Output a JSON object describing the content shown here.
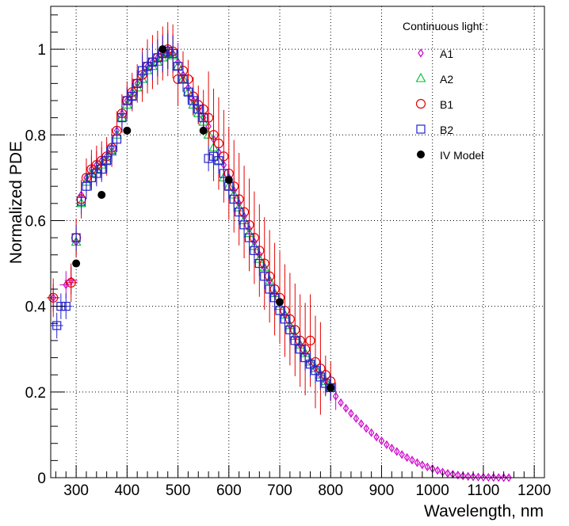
{
  "chart_data": {
    "type": "scatter",
    "title": "",
    "xlabel": "Wavelength, nm",
    "ylabel": "Normalized PDE",
    "xlim": [
      250,
      1220
    ],
    "ylim": [
      0,
      1.1
    ],
    "xticks": [
      "300",
      "400",
      "500",
      "600",
      "700",
      "800",
      "900",
      "1000",
      "1100",
      "1200"
    ],
    "yticks": [
      "0",
      "0.2",
      "0.4",
      "0.6",
      "0.8",
      "1"
    ],
    "grid": true,
    "legend": {
      "position": "top-right",
      "title": "Continuous light :",
      "entries": [
        "A1",
        "A2",
        "B1",
        "B2",
        "IV Model"
      ]
    },
    "colors": {
      "A1": "#cc00cc",
      "A2": "#00bb33",
      "B1": "#e60000",
      "B2": "#2222cc",
      "IV Model": "#000000",
      "grid": "#000000"
    },
    "series": [
      {
        "name": "A1",
        "marker": "diamond",
        "x": [
          255,
          280,
          290,
          300,
          310,
          320,
          330,
          340,
          350,
          360,
          370,
          380,
          390,
          400,
          410,
          420,
          430,
          440,
          450,
          460,
          470,
          480,
          490,
          500,
          510,
          520,
          530,
          540,
          550,
          560,
          570,
          580,
          590,
          600,
          610,
          620,
          630,
          640,
          650,
          660,
          670,
          680,
          690,
          700,
          710,
          720,
          730,
          740,
          750,
          760,
          770,
          780,
          790,
          800,
          810,
          820,
          830,
          840,
          850,
          860,
          870,
          880,
          890,
          900,
          910,
          920,
          930,
          940,
          950,
          960,
          970,
          980,
          990,
          1000,
          1010,
          1020,
          1030,
          1040,
          1050,
          1060,
          1070,
          1080,
          1090,
          1100,
          1110,
          1120,
          1130,
          1140,
          1150
        ],
        "y": [
          0.42,
          0.45,
          0.46,
          0.55,
          0.66,
          0.7,
          0.72,
          0.73,
          0.74,
          0.75,
          0.77,
          0.81,
          0.85,
          0.88,
          0.9,
          0.92,
          0.94,
          0.96,
          0.97,
          0.98,
          0.99,
          1.0,
          0.99,
          0.97,
          0.94,
          0.91,
          0.88,
          0.86,
          0.84,
          0.82,
          0.79,
          0.76,
          0.73,
          0.7,
          0.67,
          0.64,
          0.61,
          0.58,
          0.55,
          0.52,
          0.49,
          0.46,
          0.43,
          0.41,
          0.38,
          0.355,
          0.33,
          0.31,
          0.29,
          0.27,
          0.255,
          0.24,
          0.225,
          0.21,
          0.19,
          0.175,
          0.162,
          0.15,
          0.138,
          0.126,
          0.115,
          0.105,
          0.095,
          0.086,
          0.077,
          0.069,
          0.061,
          0.054,
          0.047,
          0.041,
          0.035,
          0.03,
          0.025,
          0.021,
          0.017,
          0.013,
          0.01,
          0.008,
          0.006,
          0.004,
          0.003,
          0.002,
          0.0015,
          0.001,
          0.0008,
          0.0005,
          0.0003,
          0.0002,
          0.0001
        ]
      },
      {
        "name": "A2",
        "marker": "triangle",
        "x": [
          300,
          310,
          320,
          330,
          340,
          350,
          360,
          370,
          380,
          390,
          400,
          410,
          420,
          430,
          440,
          450,
          460,
          470,
          480,
          490,
          500,
          510,
          520,
          530,
          540,
          550,
          560,
          570,
          580,
          590,
          600,
          610,
          620,
          630,
          640,
          650,
          660,
          670,
          680,
          690,
          700,
          710,
          720,
          730,
          740,
          750,
          760,
          770,
          780,
          790,
          800
        ],
        "y": [
          0.55,
          0.64,
          0.69,
          0.71,
          0.72,
          0.73,
          0.74,
          0.76,
          0.8,
          0.84,
          0.87,
          0.89,
          0.91,
          0.93,
          0.95,
          0.96,
          0.97,
          0.98,
          0.99,
          0.985,
          0.96,
          0.93,
          0.9,
          0.87,
          0.85,
          0.83,
          0.8,
          0.77,
          0.74,
          0.7,
          0.68,
          0.66,
          0.63,
          0.6,
          0.57,
          0.54,
          0.51,
          0.49,
          0.46,
          0.43,
          0.4,
          0.38,
          0.355,
          0.33,
          0.31,
          0.29,
          0.27,
          0.255,
          0.24,
          0.225,
          0.21
        ]
      },
      {
        "name": "B1",
        "marker": "circle",
        "x": [
          255,
          290,
          300,
          310,
          320,
          330,
          340,
          350,
          360,
          370,
          380,
          390,
          400,
          410,
          420,
          430,
          440,
          450,
          460,
          470,
          480,
          490,
          500,
          510,
          520,
          530,
          540,
          550,
          560,
          570,
          580,
          590,
          600,
          610,
          620,
          630,
          640,
          650,
          660,
          670,
          680,
          690,
          700,
          710,
          720,
          730,
          740,
          750,
          760,
          770,
          780,
          790,
          800
        ],
        "y": [
          0.42,
          0.455,
          0.56,
          0.65,
          0.7,
          0.72,
          0.73,
          0.74,
          0.75,
          0.77,
          0.81,
          0.85,
          0.88,
          0.9,
          0.92,
          0.94,
          0.96,
          0.97,
          0.98,
          0.99,
          1.0,
          0.995,
          0.93,
          0.95,
          0.93,
          0.89,
          0.87,
          0.86,
          0.84,
          0.8,
          0.78,
          0.75,
          0.71,
          0.68,
          0.65,
          0.62,
          0.59,
          0.56,
          0.53,
          0.5,
          0.47,
          0.44,
          0.42,
          0.39,
          0.37,
          0.345,
          0.32,
          0.3,
          0.32,
          0.27,
          0.255,
          0.24,
          0.225
        ]
      },
      {
        "name": "B2",
        "marker": "square",
        "x": [
          262,
          270,
          280,
          300,
          310,
          320,
          330,
          340,
          350,
          360,
          370,
          380,
          390,
          400,
          410,
          420,
          430,
          440,
          450,
          460,
          470,
          480,
          490,
          500,
          510,
          520,
          530,
          540,
          550,
          560,
          570,
          580,
          590,
          600,
          610,
          620,
          630,
          640,
          650,
          660,
          670,
          680,
          690,
          700,
          710,
          720,
          730,
          740,
          750,
          760,
          770,
          780,
          790,
          800
        ],
        "y": [
          0.355,
          0.4,
          0.4,
          0.56,
          0.645,
          0.68,
          0.7,
          0.71,
          0.72,
          0.74,
          0.765,
          0.79,
          0.84,
          0.88,
          0.89,
          0.92,
          0.95,
          0.96,
          0.97,
          0.98,
          0.99,
          0.995,
          0.99,
          0.96,
          0.93,
          0.9,
          0.88,
          0.86,
          0.84,
          0.745,
          0.75,
          0.74,
          0.71,
          0.68,
          0.65,
          0.62,
          0.59,
          0.56,
          0.53,
          0.5,
          0.47,
          0.44,
          0.42,
          0.39,
          0.37,
          0.345,
          0.32,
          0.3,
          0.28,
          0.265,
          0.25,
          0.235,
          0.22,
          0.21
        ]
      },
      {
        "name": "IV Model",
        "marker": "dot",
        "x": [
          300,
          350,
          400,
          470,
          550,
          600,
          700,
          800
        ],
        "y": [
          0.5,
          0.66,
          0.81,
          1.0,
          0.81,
          0.695,
          0.41,
          0.21
        ]
      }
    ]
  }
}
